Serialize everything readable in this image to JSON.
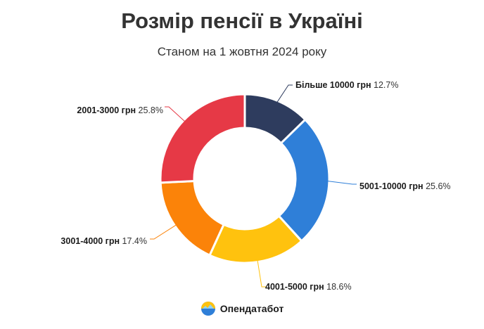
{
  "title": "Розмір пенсії в Україні",
  "subtitle": "Станом на 1 жовтня 2024 року",
  "brand": {
    "name": "Опендатабот",
    "icon": "opendatabot-logo-icon"
  },
  "chart_data": {
    "type": "pie",
    "donut": true,
    "title": "Розмір пенсії в Україні",
    "subtitle": "Станом на 1 жовтня 2024 року",
    "slices": [
      {
        "label": "Більше 10000 грн",
        "value": 12.7,
        "pct_label": "12.7%",
        "color": "#2e3c5e"
      },
      {
        "label": "5001-10000 грн",
        "value": 25.6,
        "pct_label": "25.6%",
        "color": "#2f7fd8"
      },
      {
        "label": "4001-5000 грн",
        "value": 18.6,
        "pct_label": "18.6%",
        "color": "#ffc20e"
      },
      {
        "label": "3001-4000 грн",
        "value": 17.4,
        "pct_label": "17.4%",
        "color": "#fb8309"
      },
      {
        "label": "2001-3000 грн",
        "value": 25.8,
        "pct_label": "25.8%",
        "color": "#e63946"
      }
    ]
  }
}
